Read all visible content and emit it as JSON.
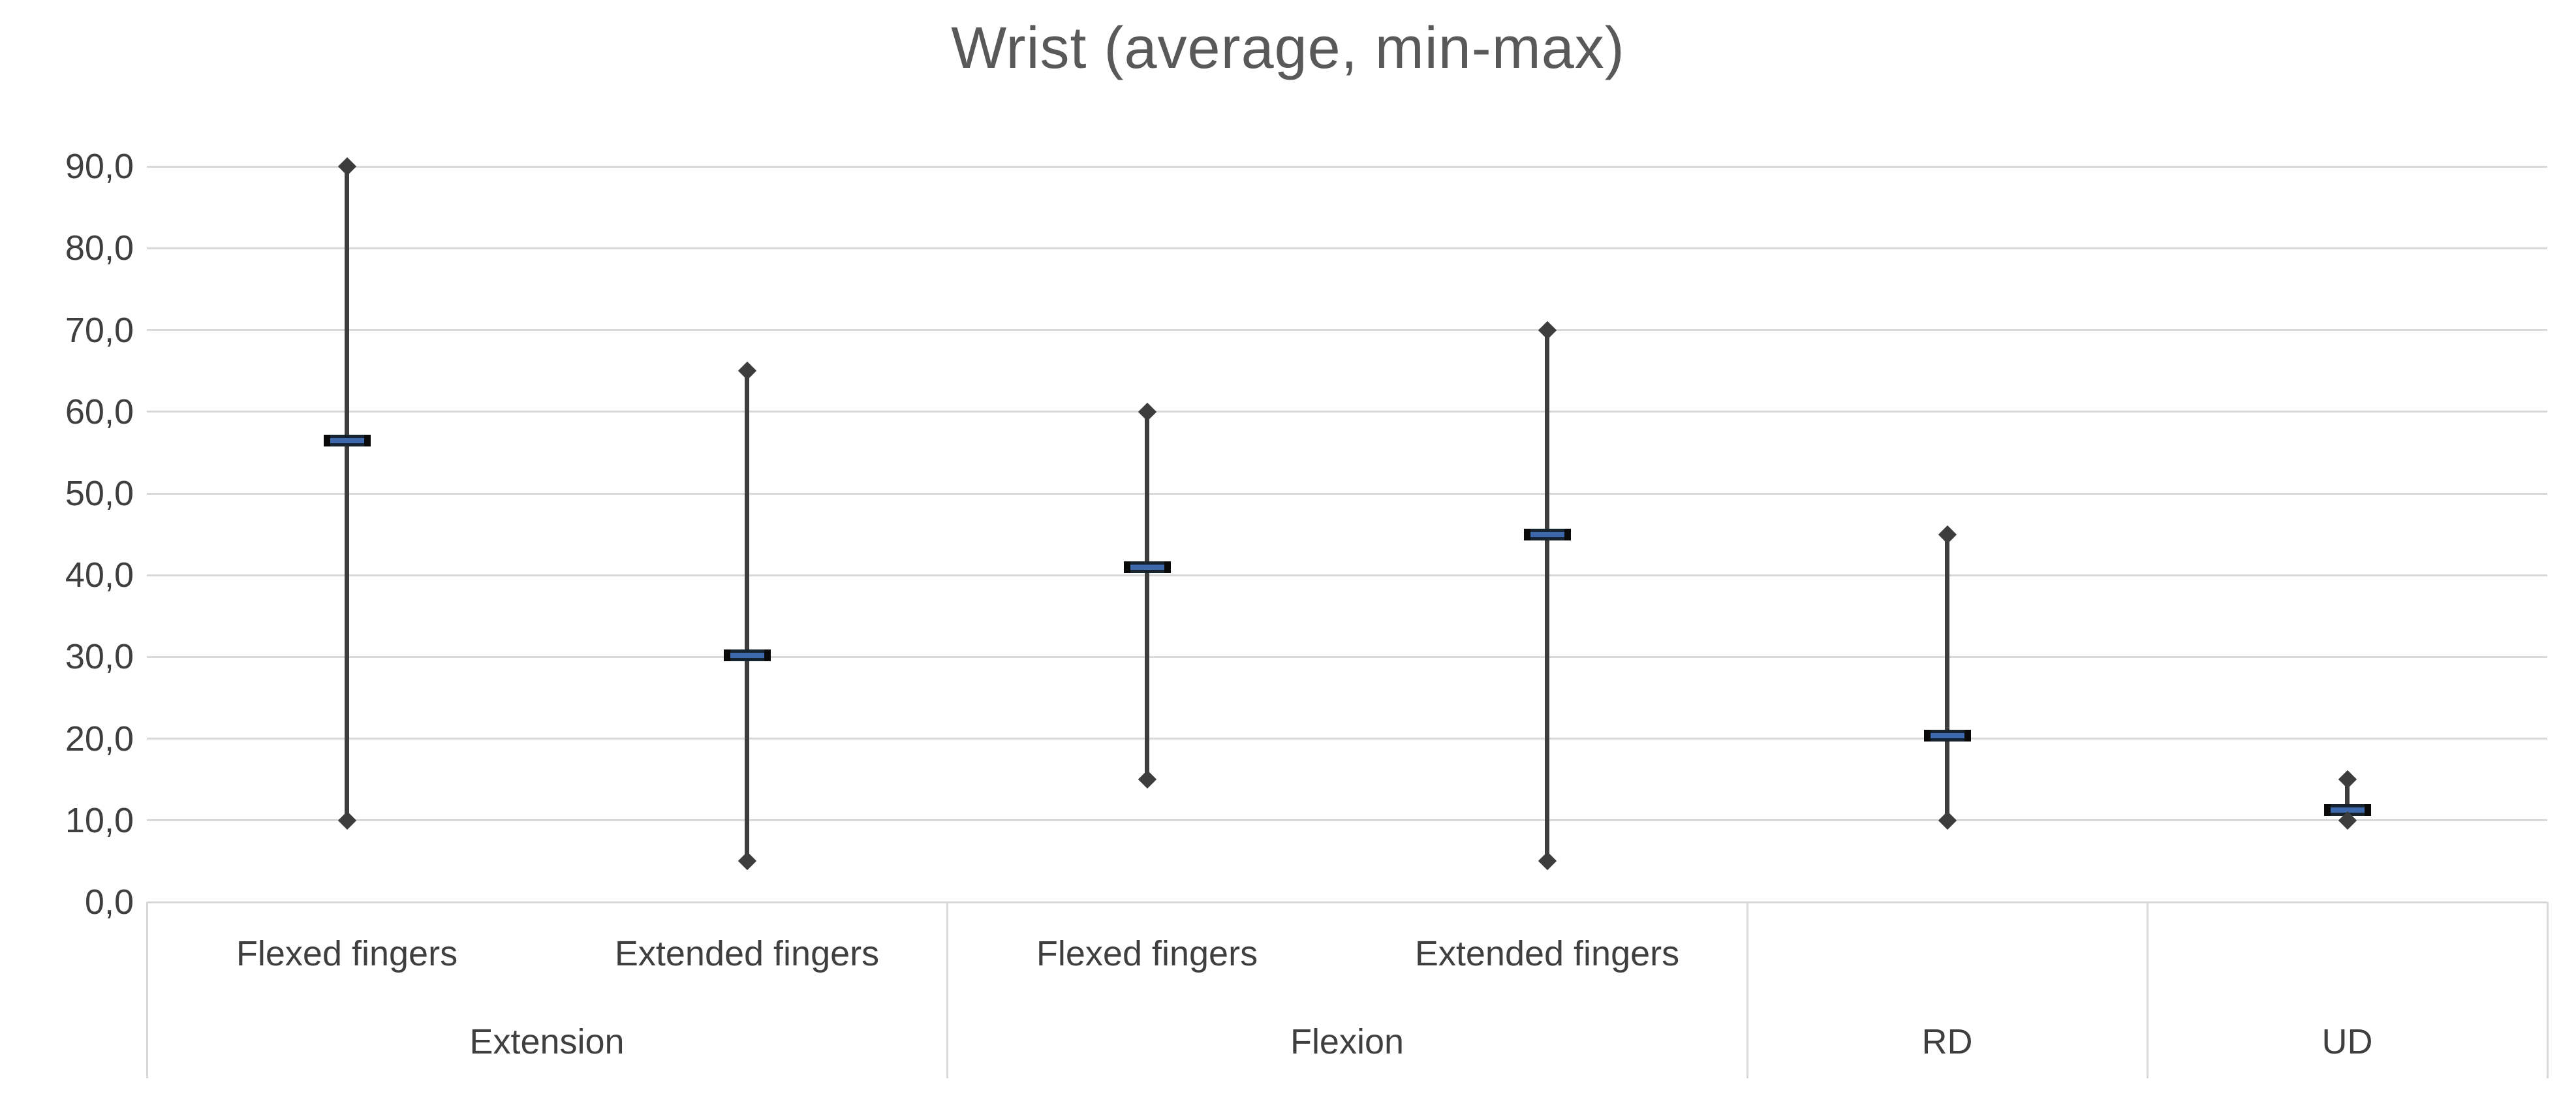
{
  "title": "Wrist (average, min-max)",
  "colors": {
    "background": "#ffffff",
    "gridline": "#d9d9d9",
    "band_border": "#d9d9d9",
    "title_text": "#595959",
    "axis_text": "#3f3f3f",
    "hilo_line": "#3d3d3d",
    "diamond_marker": "#3d3d3d",
    "avg_bar_cap": "#0a0a0a",
    "avg_bar_body": "#17222f",
    "avg_bar_fill": "#3d69ac"
  },
  "chart_data": {
    "type": "hilo",
    "title": "Wrist (average, min-max)",
    "xlabel": "",
    "ylabel": "",
    "ylim": [
      0,
      90
    ],
    "y_step": 10,
    "decimal_separator": ",",
    "grid": true,
    "legend": "none",
    "y_tick_labels": [
      "0,0",
      "10,0",
      "20,0",
      "30,0",
      "40,0",
      "50,0",
      "60,0",
      "70,0",
      "80,0",
      "90,0"
    ],
    "groups": [
      {
        "label": "Extension",
        "span": 2
      },
      {
        "label": "Flexion",
        "span": 2
      },
      {
        "label": "RD",
        "span": 1
      },
      {
        "label": "UD",
        "span": 1
      }
    ],
    "categories": [
      {
        "group": "Extension",
        "label": "Flexed fingers",
        "min": 10,
        "max": 90,
        "average": 56.5
      },
      {
        "group": "Extension",
        "label": "Extended fingers",
        "min": 5,
        "max": 65,
        "average": 30.2
      },
      {
        "group": "Flexion",
        "label": "Flexed fingers",
        "min": 15,
        "max": 60,
        "average": 41.0
      },
      {
        "group": "Flexion",
        "label": "Extended fingers",
        "min": 5,
        "max": 70,
        "average": 45.0
      },
      {
        "group": "RD",
        "label": "",
        "min": 10,
        "max": 45,
        "average": 20.4
      },
      {
        "group": "UD",
        "label": "",
        "min": 10,
        "max": 15,
        "average": 11.3
      }
    ]
  }
}
